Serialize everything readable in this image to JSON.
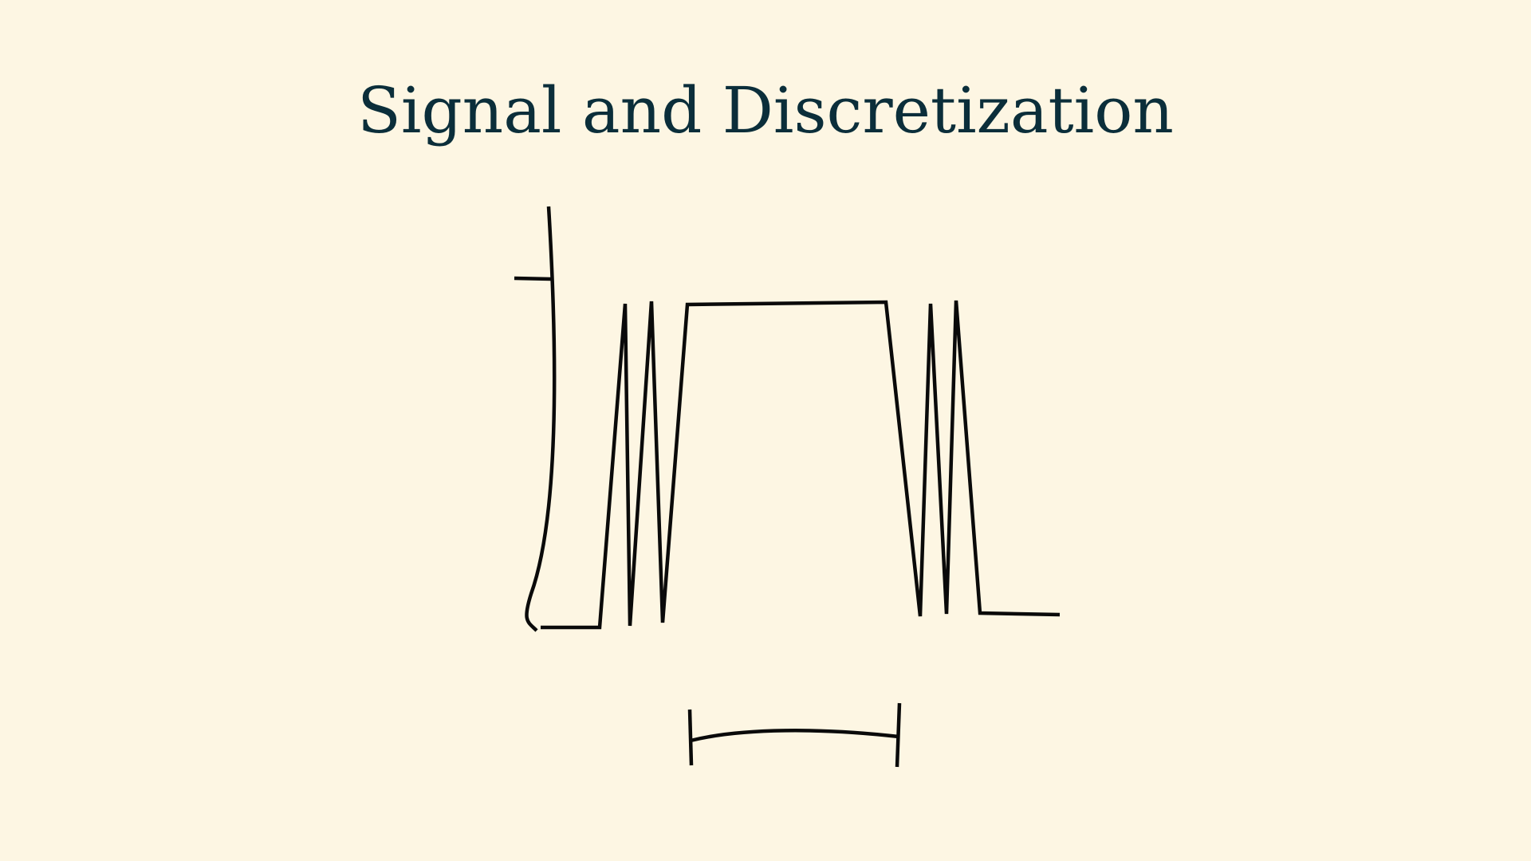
{
  "slide": {
    "title": "Signal and Discretization"
  },
  "colors": {
    "background": "#fdf6e3",
    "title": "#0b2e3a",
    "stroke": "#0a0a0a"
  }
}
